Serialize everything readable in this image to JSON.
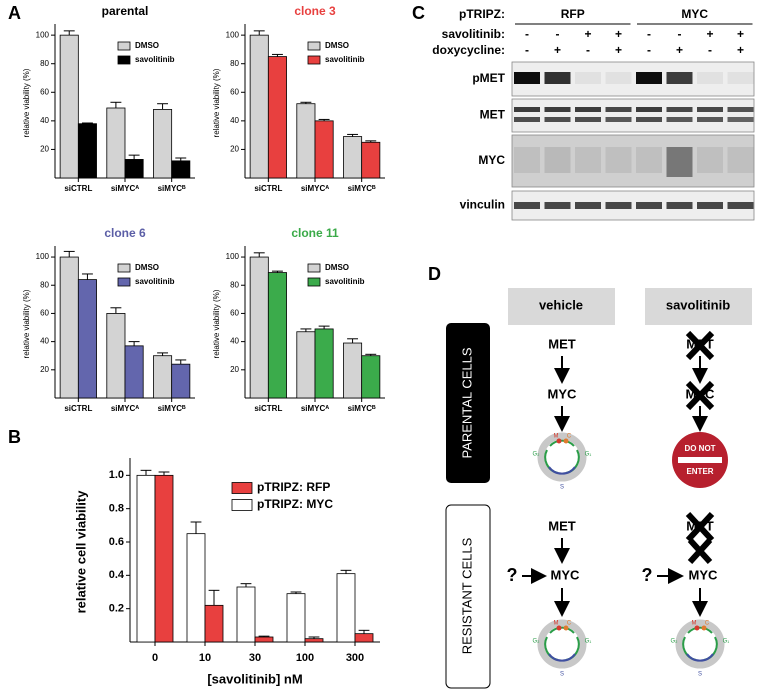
{
  "panel_labels": [
    "A",
    "B",
    "C",
    "D"
  ],
  "chart_data": [
    {
      "type": "bar",
      "title": "parental",
      "title_color": "#000000",
      "ylabel": "relative viability (%)",
      "categories": [
        "siCTRL",
        "siMYCᴬ",
        "siMYCᴮ"
      ],
      "series": [
        {
          "name": "DMSO",
          "color": "#d3d3d3",
          "values": [
            100,
            49,
            48
          ],
          "errors": [
            3,
            4,
            4
          ]
        },
        {
          "name": "savolitinib",
          "color": "#000000",
          "values": [
            38,
            13,
            12
          ],
          "errors": [
            0.5,
            3,
            2
          ]
        }
      ],
      "ylim": [
        0,
        105
      ],
      "yticks": [
        20,
        40,
        60,
        80,
        100
      ]
    },
    {
      "type": "bar",
      "title": "clone 3",
      "title_color": "#e8403f",
      "ylabel": "relative viability (%)",
      "categories": [
        "siCTRL",
        "siMYCᴬ",
        "siMYCᴮ"
      ],
      "series": [
        {
          "name": "DMSO",
          "color": "#d3d3d3",
          "values": [
            100,
            52,
            29
          ],
          "errors": [
            3,
            1,
            1.5
          ]
        },
        {
          "name": "savolitinib",
          "color": "#e8403f",
          "values": [
            85,
            40,
            25
          ],
          "errors": [
            1.5,
            1,
            1
          ]
        }
      ],
      "ylim": [
        0,
        105
      ],
      "yticks": [
        20,
        40,
        60,
        80,
        100
      ]
    },
    {
      "type": "bar",
      "title": "clone 6",
      "title_color": "#5b5ea6",
      "ylabel": "relative viability (%)",
      "categories": [
        "siCTRL",
        "siMYCᴬ",
        "siMYCᴮ"
      ],
      "series": [
        {
          "name": "DMSO",
          "color": "#d3d3d3",
          "values": [
            100,
            60,
            30
          ],
          "errors": [
            4,
            4,
            2
          ]
        },
        {
          "name": "savolitinib",
          "color": "#6366ad",
          "values": [
            84,
            37,
            24
          ],
          "errors": [
            4,
            3,
            3
          ]
        }
      ],
      "ylim": [
        0,
        105
      ],
      "yticks": [
        20,
        40,
        60,
        80,
        100
      ]
    },
    {
      "type": "bar",
      "title": "clone 11",
      "title_color": "#3aaa48",
      "ylabel": "relative viability (%)",
      "categories": [
        "siCTRL",
        "siMYCᴬ",
        "siMYCᴮ"
      ],
      "series": [
        {
          "name": "DMSO",
          "color": "#d3d3d3",
          "values": [
            100,
            47,
            39
          ],
          "errors": [
            3,
            2,
            3
          ]
        },
        {
          "name": "savolitinib",
          "color": "#3bab4b",
          "values": [
            89,
            49,
            30
          ],
          "errors": [
            1,
            2,
            1
          ]
        }
      ],
      "ylim": [
        0,
        105
      ],
      "yticks": [
        20,
        40,
        60,
        80,
        100
      ]
    },
    {
      "type": "bar",
      "xlabel": "[savolitinib] nM",
      "ylabel": "relative cell viability",
      "categories": [
        "0",
        "10",
        "30",
        "100",
        "300"
      ],
      "series": [
        {
          "name": "pTRIPZ: MYC",
          "color": "#ffffff",
          "values": [
            1.0,
            0.65,
            0.33,
            0.29,
            0.41
          ],
          "errors": [
            0.03,
            0.07,
            0.02,
            0.01,
            0.02
          ]
        },
        {
          "name": "pTRIPZ: RFP",
          "color": "#e8403f",
          "values": [
            1.0,
            0.22,
            0.03,
            0.02,
            0.05
          ],
          "errors": [
            0.02,
            0.09,
            0.005,
            0.01,
            0.02
          ]
        }
      ],
      "ylim": [
        0,
        1.08
      ],
      "yticks": [
        0.2,
        0.4,
        0.6,
        0.8,
        {
          "value": 1,
          "label": "1.0"
        }
      ]
    }
  ],
  "blot": {
    "header": "pTRIPZ:",
    "groups": [
      "RFP",
      "MYC"
    ],
    "rows": [
      {
        "label": "savolitinib:",
        "signs": [
          "-",
          "-",
          "+",
          "+",
          "-",
          "-",
          "+",
          "+"
        ]
      },
      {
        "label": "doxycycline:",
        "signs": [
          "-",
          "+",
          "-",
          "+",
          "-",
          "+",
          "-",
          "+"
        ]
      }
    ],
    "bands": [
      "pMET",
      "MET",
      "MYC",
      "vinculin"
    ]
  },
  "diagram": {
    "columns": [
      "vehicle",
      "savolitinib"
    ],
    "rows": [
      "PARENTAL CELLS",
      "RESISTANT CELLS"
    ],
    "met": "MET",
    "myc": "MYC",
    "unknown": "?",
    "stop_sign": [
      "DO NOT",
      "ENTER"
    ],
    "cycle": [
      "M",
      "C",
      "G₂",
      "G₁",
      "S"
    ]
  }
}
